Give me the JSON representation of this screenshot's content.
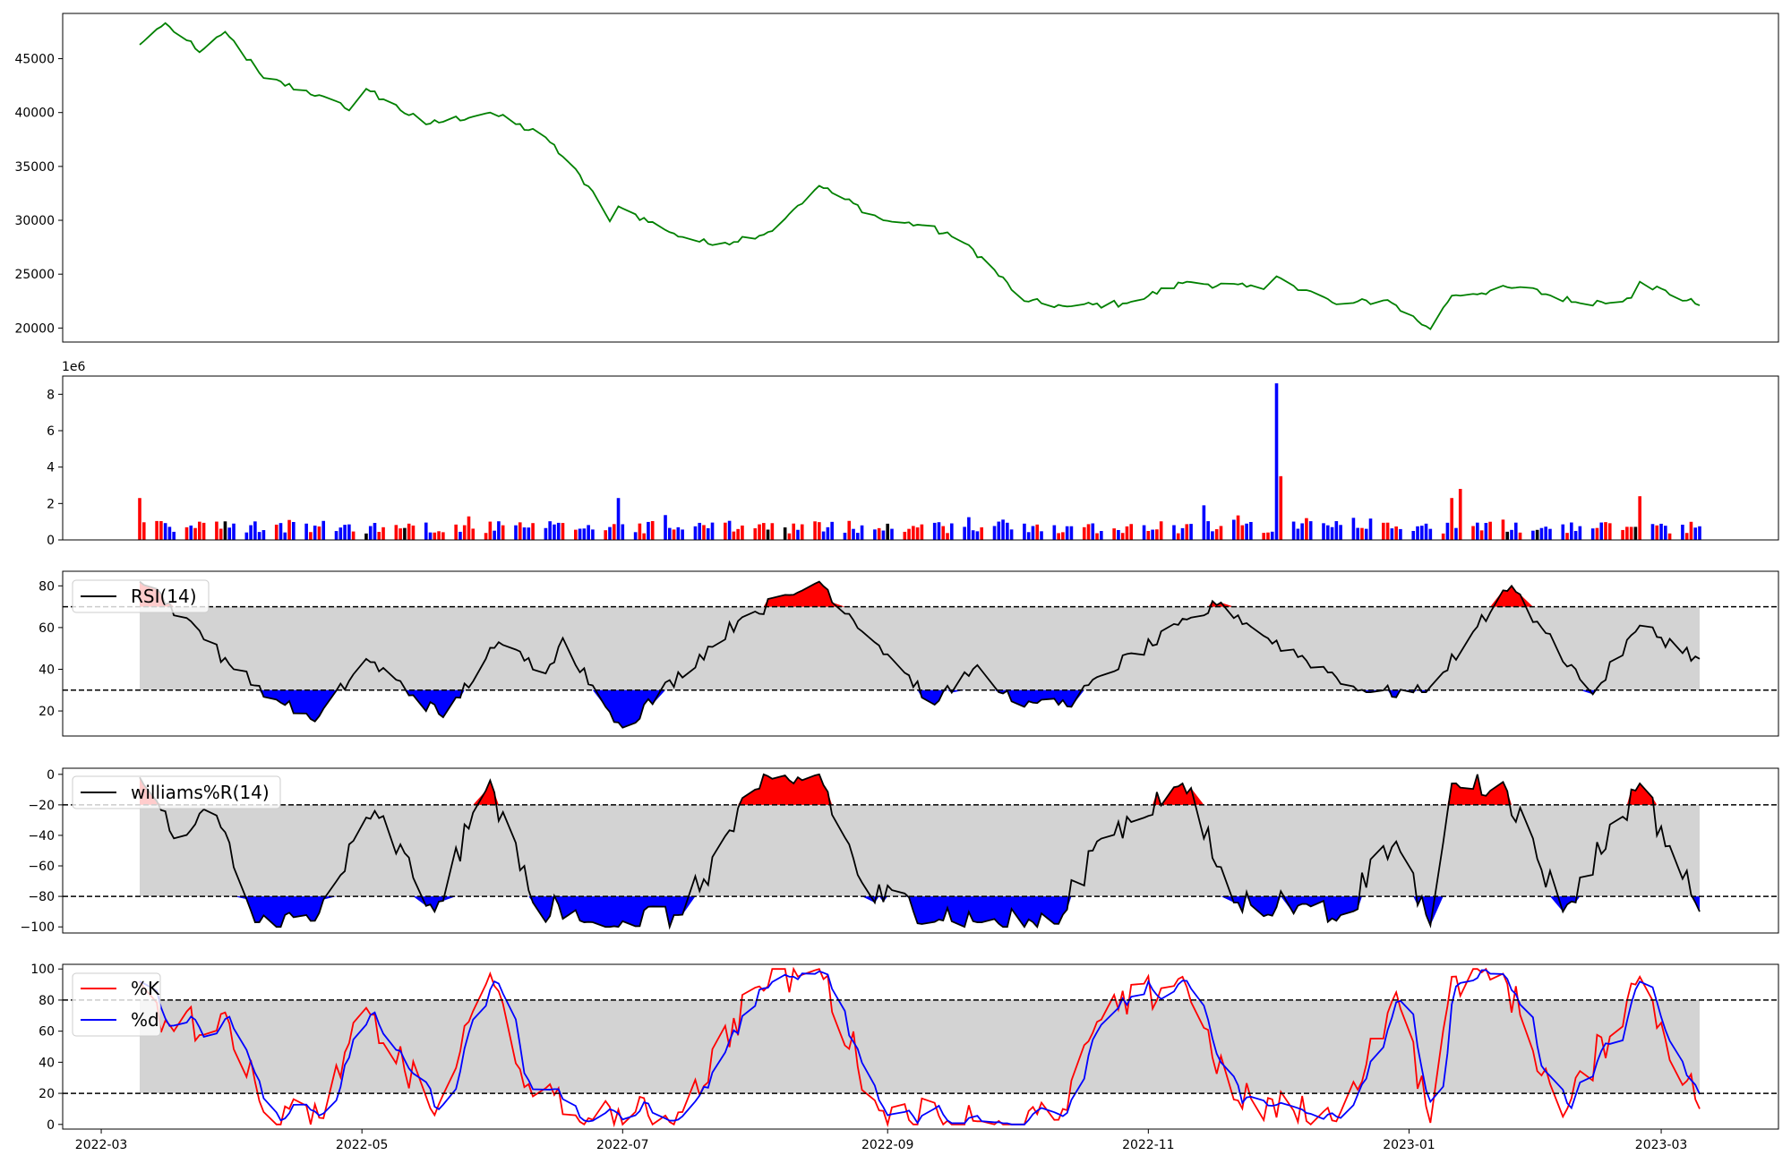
{
  "colors": {
    "price": "#008000",
    "vol_up": "#ff0000",
    "vol_down": "#0000ff",
    "vol_flat": "#000000",
    "overbought_fill": "#ff0000",
    "oversold_fill": "#0000ff",
    "band": "#d3d3d3",
    "k_line": "#ff0000",
    "d_line": "#0000ff",
    "indicator_line": "#000000"
  },
  "chart_data": [
    {
      "type": "line",
      "panel": "price",
      "series": [
        {
          "values_sampled": true
        }
      ],
      "x_range": [
        "2022-03-10",
        "2023-03-10"
      ],
      "ylim": [
        18700,
        49200
      ],
      "yticks": [
        20000,
        25000,
        30000,
        35000,
        40000,
        45000
      ],
      "ytick_labels": [
        "20000",
        "25000",
        "30000",
        "35000",
        "40000",
        "45000"
      ],
      "keypoints": [
        {
          "x": "2022-03-10",
          "y": 46300
        },
        {
          "x": "2022-03-16",
          "y": 48300
        },
        {
          "x": "2022-03-24",
          "y": 45600
        },
        {
          "x": "2022-03-30",
          "y": 47500
        },
        {
          "x": "2022-04-08",
          "y": 43200
        },
        {
          "x": "2022-04-22",
          "y": 41500
        },
        {
          "x": "2022-04-28",
          "y": 40200
        },
        {
          "x": "2022-05-02",
          "y": 42200
        },
        {
          "x": "2022-05-16",
          "y": 38900
        },
        {
          "x": "2022-05-31",
          "y": 40000
        },
        {
          "x": "2022-06-13",
          "y": 37700
        },
        {
          "x": "2022-06-24",
          "y": 32700
        },
        {
          "x": "2022-06-28",
          "y": 29900
        },
        {
          "x": "2022-06-30",
          "y": 31300
        },
        {
          "x": "2022-07-12",
          "y": 28900
        },
        {
          "x": "2022-07-22",
          "y": 27700
        },
        {
          "x": "2022-08-05",
          "y": 29000
        },
        {
          "x": "2022-08-10",
          "y": 31000
        },
        {
          "x": "2022-08-16",
          "y": 33200
        },
        {
          "x": "2022-08-31",
          "y": 30000
        },
        {
          "x": "2022-09-10",
          "y": 29500
        },
        {
          "x": "2022-09-20",
          "y": 27700
        },
        {
          "x": "2022-10-03",
          "y": 22500
        },
        {
          "x": "2022-10-13",
          "y": 22000
        },
        {
          "x": "2022-10-27",
          "y": 22300
        },
        {
          "x": "2022-11-10",
          "y": 24300
        },
        {
          "x": "2022-11-28",
          "y": 23600
        },
        {
          "x": "2022-12-01",
          "y": 24800
        },
        {
          "x": "2022-12-15",
          "y": 22200
        },
        {
          "x": "2022-12-27",
          "y": 22600
        },
        {
          "x": "2023-01-06",
          "y": 19900
        },
        {
          "x": "2023-01-11",
          "y": 23000
        },
        {
          "x": "2023-01-27",
          "y": 23800
        },
        {
          "x": "2023-02-10",
          "y": 22300
        },
        {
          "x": "2023-02-22",
          "y": 22800
        },
        {
          "x": "2023-02-24",
          "y": 24300
        },
        {
          "x": "2023-03-10",
          "y": 22100
        }
      ]
    },
    {
      "type": "bar",
      "panel": "volume",
      "offset_label": "1e6",
      "ylim": [
        0,
        9.0
      ],
      "yticks": [
        0,
        2,
        4,
        6,
        8
      ],
      "ytick_labels": [
        "0",
        "2",
        "4",
        "6",
        "8"
      ],
      "highlights": [
        {
          "x": "2022-03-10",
          "y": 2.3,
          "color": "up"
        },
        {
          "x": "2022-06-30",
          "y": 2.3,
          "color": "down"
        },
        {
          "x": "2022-12-01",
          "y": 8.6,
          "color": "down"
        },
        {
          "x": "2022-12-02",
          "y": 3.5,
          "color": "up"
        },
        {
          "x": "2023-01-13",
          "y": 2.8,
          "color": "up"
        },
        {
          "x": "2023-01-11",
          "y": 2.3,
          "color": "up"
        },
        {
          "x": "2023-02-24",
          "y": 2.4,
          "color": "up"
        },
        {
          "x": "2022-11-14",
          "y": 1.9,
          "color": "down"
        }
      ]
    },
    {
      "type": "line",
      "panel": "rsi",
      "series": [
        {
          "name": "RSI(14)"
        }
      ],
      "ylim": [
        8,
        87
      ],
      "yticks": [
        20,
        40,
        60,
        80
      ],
      "ytick_labels": [
        "20",
        "40",
        "60",
        "80"
      ],
      "hlines": [
        30,
        70
      ],
      "keypoints": [
        {
          "x": "2022-03-10",
          "y": 82
        },
        {
          "x": "2022-03-22",
          "y": 63
        },
        {
          "x": "2022-04-01",
          "y": 40
        },
        {
          "x": "2022-04-12",
          "y": 24
        },
        {
          "x": "2022-04-20",
          "y": 15
        },
        {
          "x": "2022-05-02",
          "y": 45
        },
        {
          "x": "2022-05-20",
          "y": 17
        },
        {
          "x": "2022-06-02",
          "y": 53
        },
        {
          "x": "2022-06-13",
          "y": 38
        },
        {
          "x": "2022-06-17",
          "y": 55
        },
        {
          "x": "2022-06-27",
          "y": 22
        },
        {
          "x": "2022-07-01",
          "y": 12
        },
        {
          "x": "2022-07-29",
          "y": 65
        },
        {
          "x": "2022-08-16",
          "y": 82
        },
        {
          "x": "2022-09-02",
          "y": 45
        },
        {
          "x": "2022-09-12",
          "y": 23
        },
        {
          "x": "2022-09-22",
          "y": 42
        },
        {
          "x": "2022-09-27",
          "y": 29
        },
        {
          "x": "2022-10-05",
          "y": 24
        },
        {
          "x": "2022-10-14",
          "y": 22
        },
        {
          "x": "2022-10-19",
          "y": 35
        },
        {
          "x": "2022-11-18",
          "y": 72
        },
        {
          "x": "2022-11-28",
          "y": 56
        },
        {
          "x": "2022-12-22",
          "y": 29
        },
        {
          "x": "2023-01-05",
          "y": 29
        },
        {
          "x": "2023-01-16",
          "y": 58
        },
        {
          "x": "2023-01-25",
          "y": 80
        },
        {
          "x": "2023-02-01",
          "y": 60
        },
        {
          "x": "2023-02-13",
          "y": 28
        },
        {
          "x": "2023-02-24",
          "y": 61
        },
        {
          "x": "2023-03-10",
          "y": 45
        }
      ]
    },
    {
      "type": "line",
      "panel": "williams",
      "series": [
        {
          "name": "williams%R(14)"
        }
      ],
      "ylim": [
        -104,
        4
      ],
      "yticks": [
        -100,
        -80,
        -60,
        -40,
        -20,
        0
      ],
      "ytick_labels": [
        "−100",
        "−80",
        "−60",
        "−40",
        "−20",
        "0"
      ],
      "hlines": [
        -20,
        -80
      ],
      "keypoints": [
        {
          "x": "2022-03-10",
          "y": -2
        },
        {
          "x": "2022-03-18",
          "y": -42
        },
        {
          "x": "2022-03-28",
          "y": -27
        },
        {
          "x": "2022-04-06",
          "y": -97
        },
        {
          "x": "2022-04-20",
          "y": -96
        },
        {
          "x": "2022-05-04",
          "y": -24
        },
        {
          "x": "2022-05-18",
          "y": -90
        },
        {
          "x": "2022-05-31",
          "y": -4
        },
        {
          "x": "2022-06-10",
          "y": -84
        },
        {
          "x": "2022-06-22",
          "y": -97
        },
        {
          "x": "2022-07-15",
          "y": -92
        },
        {
          "x": "2022-08-01",
          "y": -10
        },
        {
          "x": "2022-08-16",
          "y": 0
        },
        {
          "x": "2022-08-27",
          "y": -78
        },
        {
          "x": "2022-09-22",
          "y": -97
        },
        {
          "x": "2022-10-11",
          "y": -98
        },
        {
          "x": "2022-10-20",
          "y": -44
        },
        {
          "x": "2022-11-09",
          "y": -6
        },
        {
          "x": "2022-11-21",
          "y": -84
        },
        {
          "x": "2022-12-08",
          "y": -85
        },
        {
          "x": "2022-12-15",
          "y": -96
        },
        {
          "x": "2022-12-29",
          "y": -44
        },
        {
          "x": "2023-01-06",
          "y": -99
        },
        {
          "x": "2023-01-11",
          "y": -6
        },
        {
          "x": "2023-01-23",
          "y": -5
        },
        {
          "x": "2023-02-06",
          "y": -90
        },
        {
          "x": "2023-02-24",
          "y": -6
        },
        {
          "x": "2023-03-10",
          "y": -90
        }
      ]
    },
    {
      "type": "line",
      "panel": "stochastic",
      "series": [
        {
          "name": "%K"
        },
        {
          "name": "%d"
        }
      ],
      "ylim": [
        -3,
        103
      ],
      "yticks": [
        0,
        20,
        40,
        60,
        80,
        100
      ],
      "ytick_labels": [
        "0",
        "20",
        "40",
        "60",
        "80",
        "100"
      ],
      "hlines": [
        20,
        80
      ],
      "xtick_labels": [
        "2022-03",
        "2022-05",
        "2022-07",
        "2022-09",
        "2022-11",
        "2023-01",
        "2023-03"
      ],
      "xticks": [
        "2022-03-01",
        "2022-05-01",
        "2022-07-01",
        "2022-09-01",
        "2022-11-01",
        "2023-01-01",
        "2023-03-01"
      ],
      "keypoints_k": [
        {
          "x": "2022-03-10",
          "y": 92
        },
        {
          "x": "2022-03-18",
          "y": 60
        },
        {
          "x": "2022-03-30",
          "y": 72
        },
        {
          "x": "2022-04-08",
          "y": 8
        },
        {
          "x": "2022-04-22",
          "y": 4
        },
        {
          "x": "2022-05-02",
          "y": 75
        },
        {
          "x": "2022-05-18",
          "y": 6
        },
        {
          "x": "2022-05-31",
          "y": 97
        },
        {
          "x": "2022-06-10",
          "y": 18
        },
        {
          "x": "2022-06-24",
          "y": 3
        },
        {
          "x": "2022-07-15",
          "y": 8
        },
        {
          "x": "2022-08-01",
          "y": 88
        },
        {
          "x": "2022-08-16",
          "y": 100
        },
        {
          "x": "2022-08-30",
          "y": 9
        },
        {
          "x": "2022-09-22",
          "y": 2
        },
        {
          "x": "2022-10-11",
          "y": 3
        },
        {
          "x": "2022-10-20",
          "y": 66
        },
        {
          "x": "2022-11-09",
          "y": 95
        },
        {
          "x": "2022-11-21",
          "y": 16
        },
        {
          "x": "2022-12-15",
          "y": 2
        },
        {
          "x": "2022-12-29",
          "y": 85
        },
        {
          "x": "2023-01-06",
          "y": 1
        },
        {
          "x": "2023-01-11",
          "y": 95
        },
        {
          "x": "2023-01-23",
          "y": 97
        },
        {
          "x": "2023-02-06",
          "y": 5
        },
        {
          "x": "2023-02-24",
          "y": 95
        },
        {
          "x": "2023-03-10",
          "y": 10
        }
      ]
    }
  ],
  "legends": {
    "rsi": "RSI(14)",
    "williams": "williams%R(14)",
    "k": "%K",
    "d": "%d"
  }
}
